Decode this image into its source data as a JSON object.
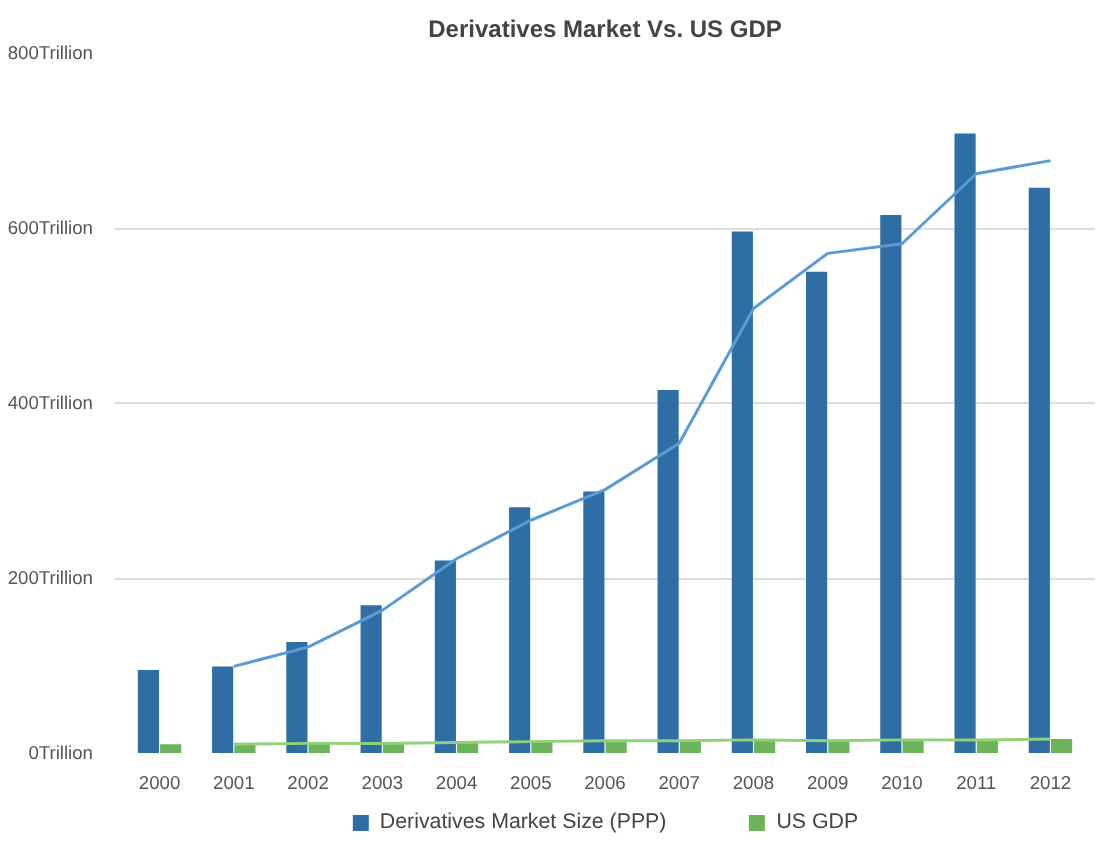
{
  "chart_data": {
    "type": "bar",
    "title": "Derivatives Market Vs. US GDP",
    "categories": [
      "2000",
      "2001",
      "2002",
      "2003",
      "2004",
      "2005",
      "2006",
      "2007",
      "2008",
      "2009",
      "2010",
      "2011",
      "2012"
    ],
    "series": [
      {
        "name": "Derivatives Market Size (PPP)",
        "color": "#2f6ea4",
        "values": [
          95,
          99,
          127,
          169,
          220,
          281,
          299,
          415,
          596,
          550,
          615,
          708,
          646
        ]
      },
      {
        "name": "US GDP",
        "color": "#6cb35a",
        "values": [
          10,
          10,
          11,
          11,
          12,
          13,
          14,
          14,
          15,
          14,
          15,
          15,
          16
        ]
      },
      {
        "type": "line",
        "color": "#5b9bd5",
        "values": [
          null,
          99,
          121,
          163,
          222,
          266,
          301,
          354,
          508,
          571,
          582,
          662,
          677
        ]
      },
      {
        "type": "line",
        "color": "#8fd27a",
        "values": [
          null,
          10,
          11,
          11,
          12,
          13,
          14,
          14,
          15,
          14,
          15,
          15,
          16
        ]
      }
    ],
    "ylim": [
      0,
      800
    ],
    "yticks": [
      {
        "value": 0,
        "label": "0Trillion"
      },
      {
        "value": 200,
        "label": "200Trillion"
      },
      {
        "value": 400,
        "label": "400Trillion"
      },
      {
        "value": 600,
        "label": "600Trillion"
      },
      {
        "value": 800,
        "label": "800Trillion"
      }
    ],
    "grid": "y",
    "legend": "bottom"
  }
}
